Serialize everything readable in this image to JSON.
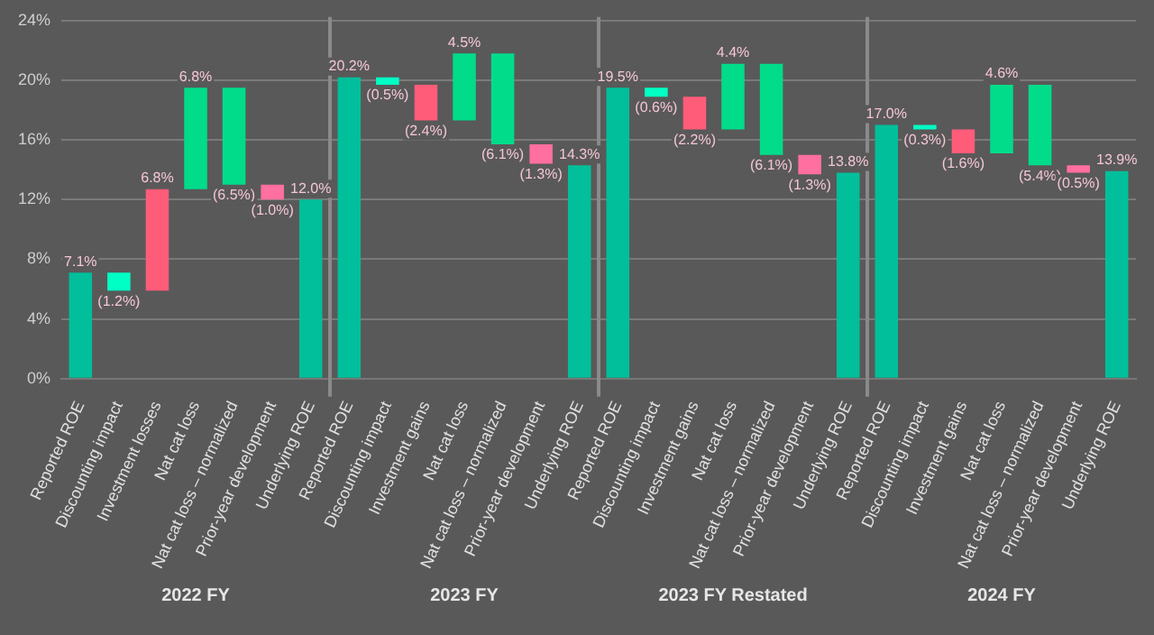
{
  "chart_data": {
    "type": "bar",
    "categories": [
      "Reported ROE",
      "Discounting impact",
      "Investment losses",
      "Nat cat loss",
      "Nat cat loss – normalized",
      "Prior-year development",
      "Underlying ROE",
      "Reported ROE",
      "Discounting impact",
      "Investment gains",
      "Nat cat loss",
      "Nat cat loss – normalized",
      "Prior-year development",
      "Underlying ROE",
      "Reported ROE",
      "Discounting impact",
      "Investment gains",
      "Nat cat loss",
      "Nat cat loss – normalized",
      "Prior-year development",
      "Underlying ROE",
      "Reported ROE",
      "Discounting impact",
      "Investment gains",
      "Nat cat loss",
      "Nat cat loss – normalized",
      "Prior-year development",
      "Underlying ROE"
    ],
    "values": [
      7.1,
      -1.2,
      6.8,
      6.8,
      -6.5,
      -1.0,
      12.0,
      20.2,
      -0.5,
      -2.4,
      4.5,
      -6.1,
      -1.3,
      14.3,
      19.5,
      -0.6,
      -2.2,
      4.4,
      -6.1,
      -1.3,
      13.8,
      17.0,
      -0.3,
      -1.6,
      4.6,
      -5.4,
      -0.5,
      13.9
    ],
    "base": [
      0,
      7.1,
      5.9,
      12.7,
      19.5,
      13.0,
      0,
      0,
      20.2,
      19.7,
      17.3,
      21.8,
      15.7,
      0,
      0,
      19.5,
      18.9,
      16.7,
      21.1,
      15.0,
      0,
      0,
      17.0,
      16.7,
      15.1,
      19.7,
      14.3,
      0
    ],
    "colors": [
      "#00bf9a",
      "#00ffc4",
      "#ff5c7a",
      "#00dc8a",
      "#00dc8a",
      "#ff6fa0",
      "#00bf9a",
      "#00bf9a",
      "#00ffc4",
      "#ff5c7a",
      "#00dc8a",
      "#00dc8a",
      "#ff6fa0",
      "#00bf9a",
      "#00bf9a",
      "#00ffc4",
      "#ff5c7a",
      "#00dc8a",
      "#00dc8a",
      "#ff6fa0",
      "#00bf9a",
      "#00bf9a",
      "#00ffc4",
      "#ff5c7a",
      "#00dc8a",
      "#00dc8a",
      "#ff6fa0",
      "#00bf9a"
    ],
    "value_labels": [
      "7.1%",
      "(1.2%)",
      "6.8%",
      "6.8%",
      "(6.5%)",
      "(1.0%)",
      "12.0%",
      "20.2%",
      "(0.5%)",
      "(2.4%)",
      "4.5%",
      "(6.1%)",
      "(1.3%)",
      "14.3%",
      "19.5%",
      "(0.6%)",
      "(2.2%)",
      "4.4%",
      "(6.1%)",
      "(1.3%)",
      "13.8%",
      "17.0%",
      "(0.3%)",
      "(1.6%)",
      "4.6%",
      "(5.4%)",
      "(0.5%)",
      "13.9%"
    ],
    "annotations": [
      "2022 FY",
      "2023 FY",
      "2023 FY Restated",
      "2024 FY"
    ],
    "ylim": [
      0,
      24
    ],
    "yticks": [
      {
        "value": 0,
        "label": "0%"
      },
      {
        "value": 4,
        "label": "4%"
      },
      {
        "value": 8,
        "label": "8%"
      },
      {
        "value": 12,
        "label": "12%"
      },
      {
        "value": 16,
        "label": "16%"
      },
      {
        "value": 20,
        "label": "20%"
      },
      {
        "value": 24,
        "label": "24%"
      }
    ],
    "grid": "y",
    "legend": false
  }
}
